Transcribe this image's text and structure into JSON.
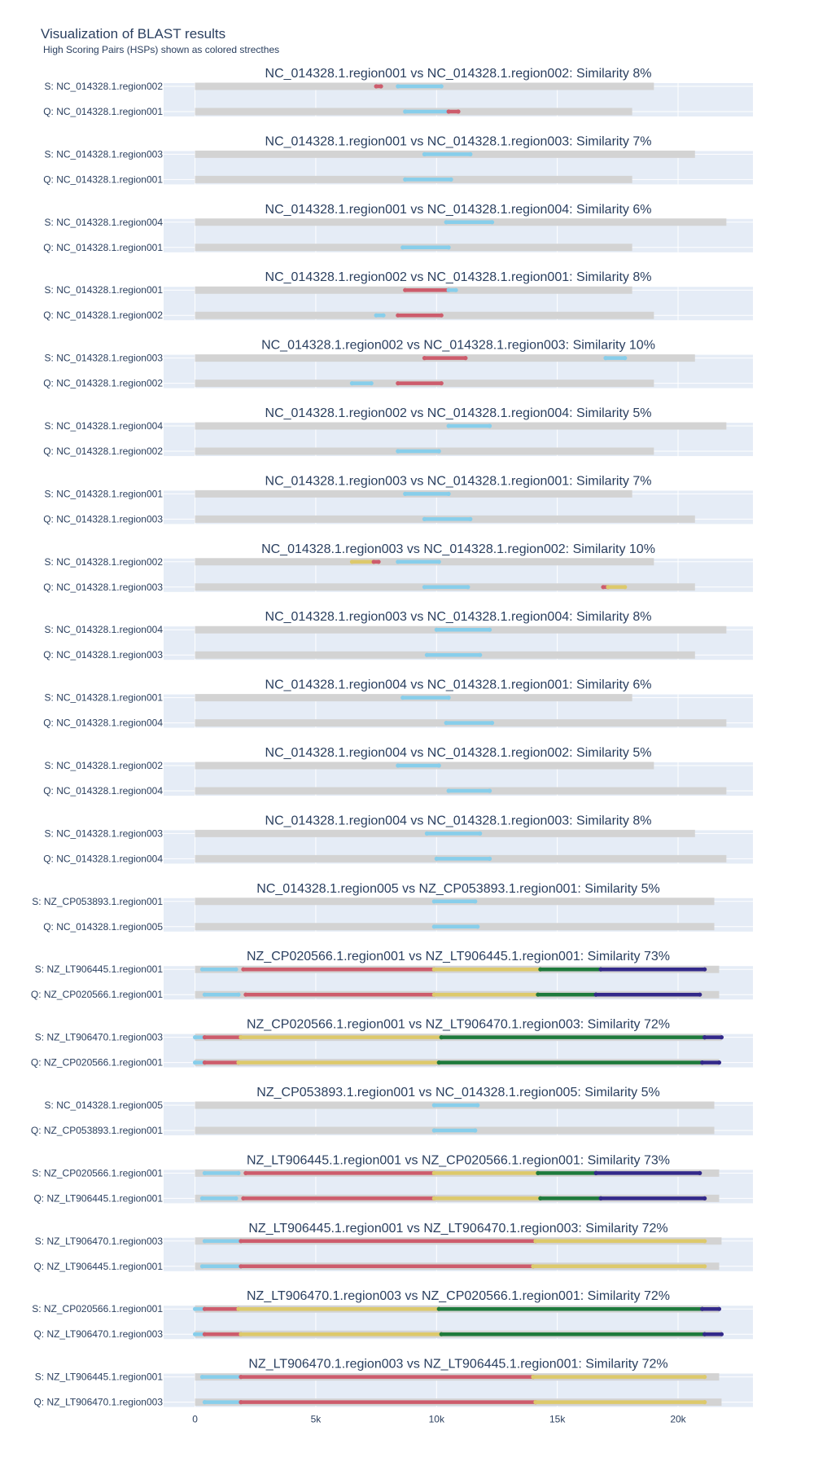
{
  "title": "Visualization of BLAST results",
  "subtitle": "High Scoring Pairs (HSPs) shown as colored strecthes",
  "colors": {
    "plot_bg": "#e5ecf6",
    "grid": "#ffffff",
    "track": "#d3d3d3",
    "blue": "#87ceeb",
    "red": "#cd5c6c",
    "yellow": "#ddc96b",
    "green": "#1e7a3c",
    "purple": "#33298a"
  },
  "chart_data": {
    "type": "bar",
    "xlim": [
      -1300,
      23100
    ],
    "xticks": [
      {
        "value": 0,
        "label": "0"
      },
      {
        "value": 5000,
        "label": "5k"
      },
      {
        "value": 10000,
        "label": "10k"
      },
      {
        "value": 15000,
        "label": "15k"
      },
      {
        "value": 20000,
        "label": "20k"
      }
    ],
    "panels": [
      {
        "title": "NC_014328.1.region001 vs NC_014328.1.region002: Similarity 8%",
        "subject": {
          "label": "S: NC_014328.1.region002",
          "length": 19000,
          "hsps": [
            {
              "start": 7500,
              "end": 7700,
              "color": "red"
            },
            {
              "start": 8400,
              "end": 10200,
              "color": "blue"
            }
          ]
        },
        "query": {
          "label": "Q: NC_014328.1.region001",
          "length": 18100,
          "hsps": [
            {
              "start": 8700,
              "end": 10500,
              "color": "blue"
            },
            {
              "start": 10500,
              "end": 10900,
              "color": "red"
            }
          ]
        }
      },
      {
        "title": "NC_014328.1.region001 vs NC_014328.1.region003: Similarity 7%",
        "subject": {
          "label": "S: NC_014328.1.region003",
          "length": 20700,
          "hsps": [
            {
              "start": 9500,
              "end": 11400,
              "color": "blue"
            }
          ]
        },
        "query": {
          "label": "Q: NC_014328.1.region001",
          "length": 18100,
          "hsps": [
            {
              "start": 8700,
              "end": 10600,
              "color": "blue"
            }
          ]
        }
      },
      {
        "title": "NC_014328.1.region001 vs NC_014328.1.region004: Similarity 6%",
        "subject": {
          "label": "S: NC_014328.1.region004",
          "length": 22000,
          "hsps": [
            {
              "start": 10400,
              "end": 12300,
              "color": "blue"
            }
          ]
        },
        "query": {
          "label": "Q: NC_014328.1.region001",
          "length": 18100,
          "hsps": [
            {
              "start": 8600,
              "end": 10500,
              "color": "blue"
            }
          ]
        }
      },
      {
        "title": "NC_014328.1.region002 vs NC_014328.1.region001: Similarity 8%",
        "subject": {
          "label": "S: NC_014328.1.region001",
          "length": 18100,
          "hsps": [
            {
              "start": 8700,
              "end": 10500,
              "color": "red"
            },
            {
              "start": 10500,
              "end": 10800,
              "color": "blue"
            }
          ]
        },
        "query": {
          "label": "Q: NC_014328.1.region002",
          "length": 19000,
          "hsps": [
            {
              "start": 7500,
              "end": 7800,
              "color": "blue"
            },
            {
              "start": 8400,
              "end": 10200,
              "color": "red"
            }
          ]
        }
      },
      {
        "title": "NC_014328.1.region002 vs NC_014328.1.region003: Similarity 10%",
        "subject": {
          "label": "S: NC_014328.1.region003",
          "length": 20700,
          "hsps": [
            {
              "start": 9500,
              "end": 11200,
              "color": "red"
            },
            {
              "start": 17000,
              "end": 17800,
              "color": "blue"
            }
          ]
        },
        "query": {
          "label": "Q: NC_014328.1.region002",
          "length": 19000,
          "hsps": [
            {
              "start": 6500,
              "end": 7300,
              "color": "blue"
            },
            {
              "start": 8400,
              "end": 10200,
              "color": "red"
            }
          ]
        }
      },
      {
        "title": "NC_014328.1.region002 vs NC_014328.1.region004: Similarity 5%",
        "subject": {
          "label": "S: NC_014328.1.region004",
          "length": 22000,
          "hsps": [
            {
              "start": 10500,
              "end": 12200,
              "color": "blue"
            }
          ]
        },
        "query": {
          "label": "Q: NC_014328.1.region002",
          "length": 19000,
          "hsps": [
            {
              "start": 8400,
              "end": 10100,
              "color": "blue"
            }
          ]
        }
      },
      {
        "title": "NC_014328.1.region003 vs NC_014328.1.region001: Similarity 7%",
        "subject": {
          "label": "S: NC_014328.1.region001",
          "length": 18100,
          "hsps": [
            {
              "start": 8700,
              "end": 10500,
              "color": "blue"
            }
          ]
        },
        "query": {
          "label": "Q: NC_014328.1.region003",
          "length": 20700,
          "hsps": [
            {
              "start": 9500,
              "end": 11400,
              "color": "blue"
            }
          ]
        }
      },
      {
        "title": "NC_014328.1.region003 vs NC_014328.1.region002: Similarity 10%",
        "subject": {
          "label": "S: NC_014328.1.region002",
          "length": 19000,
          "hsps": [
            {
              "start": 6500,
              "end": 7400,
              "color": "yellow"
            },
            {
              "start": 7400,
              "end": 7600,
              "color": "red"
            },
            {
              "start": 8400,
              "end": 10100,
              "color": "blue"
            }
          ]
        },
        "query": {
          "label": "Q: NC_014328.1.region003",
          "length": 20700,
          "hsps": [
            {
              "start": 9500,
              "end": 11300,
              "color": "blue"
            },
            {
              "start": 16900,
              "end": 17100,
              "color": "red"
            },
            {
              "start": 17100,
              "end": 17800,
              "color": "yellow"
            }
          ]
        }
      },
      {
        "title": "NC_014328.1.region003 vs NC_014328.1.region004: Similarity 8%",
        "subject": {
          "label": "S: NC_014328.1.region004",
          "length": 22000,
          "hsps": [
            {
              "start": 10000,
              "end": 12200,
              "color": "blue"
            }
          ]
        },
        "query": {
          "label": "Q: NC_014328.1.region003",
          "length": 20700,
          "hsps": [
            {
              "start": 9600,
              "end": 11800,
              "color": "blue"
            }
          ]
        }
      },
      {
        "title": "NC_014328.1.region004 vs NC_014328.1.region001: Similarity 6%",
        "subject": {
          "label": "S: NC_014328.1.region001",
          "length": 18100,
          "hsps": [
            {
              "start": 8600,
              "end": 10500,
              "color": "blue"
            }
          ]
        },
        "query": {
          "label": "Q: NC_014328.1.region004",
          "length": 22000,
          "hsps": [
            {
              "start": 10400,
              "end": 12300,
              "color": "blue"
            }
          ]
        }
      },
      {
        "title": "NC_014328.1.region004 vs NC_014328.1.region002: Similarity 5%",
        "subject": {
          "label": "S: NC_014328.1.region002",
          "length": 19000,
          "hsps": [
            {
              "start": 8400,
              "end": 10100,
              "color": "blue"
            }
          ]
        },
        "query": {
          "label": "Q: NC_014328.1.region004",
          "length": 22000,
          "hsps": [
            {
              "start": 10500,
              "end": 12200,
              "color": "blue"
            }
          ]
        }
      },
      {
        "title": "NC_014328.1.region004 vs NC_014328.1.region003: Similarity 8%",
        "subject": {
          "label": "S: NC_014328.1.region003",
          "length": 20700,
          "hsps": [
            {
              "start": 9600,
              "end": 11800,
              "color": "blue"
            }
          ]
        },
        "query": {
          "label": "Q: NC_014328.1.region004",
          "length": 22000,
          "hsps": [
            {
              "start": 10000,
              "end": 12200,
              "color": "blue"
            }
          ]
        }
      },
      {
        "title": "NC_014328.1.region005 vs NZ_CP053893.1.region001: Similarity 5%",
        "subject": {
          "label": "S: NZ_CP053893.1.region001",
          "length": 21500,
          "hsps": [
            {
              "start": 9900,
              "end": 11600,
              "color": "blue"
            }
          ]
        },
        "query": {
          "label": "Q: NC_014328.1.region005",
          "length": 21500,
          "hsps": [
            {
              "start": 9900,
              "end": 11700,
              "color": "blue"
            }
          ]
        }
      },
      {
        "title": "NZ_CP020566.1.region001 vs NZ_LT906445.1.region001: Similarity 73%",
        "subject": {
          "label": "S: NZ_LT906445.1.region001",
          "length": 21700,
          "hsps": [
            {
              "start": 300,
              "end": 1700,
              "color": "blue"
            },
            {
              "start": 2000,
              "end": 9900,
              "color": "red"
            },
            {
              "start": 9900,
              "end": 14300,
              "color": "yellow"
            },
            {
              "start": 14300,
              "end": 16800,
              "color": "green"
            },
            {
              "start": 16800,
              "end": 21100,
              "color": "purple"
            }
          ]
        },
        "query": {
          "label": "Q: NZ_CP020566.1.region001",
          "length": 21700,
          "hsps": [
            {
              "start": 400,
              "end": 1800,
              "color": "blue"
            },
            {
              "start": 2100,
              "end": 9900,
              "color": "red"
            },
            {
              "start": 9900,
              "end": 14200,
              "color": "yellow"
            },
            {
              "start": 14200,
              "end": 16600,
              "color": "green"
            },
            {
              "start": 16600,
              "end": 20900,
              "color": "purple"
            }
          ]
        }
      },
      {
        "title": "NZ_CP020566.1.region001 vs NZ_LT906470.1.region003: Similarity 72%",
        "subject": {
          "label": "S: NZ_LT906470.1.region003",
          "length": 21800,
          "hsps": [
            {
              "start": 0,
              "end": 400,
              "color": "blue"
            },
            {
              "start": 400,
              "end": 1900,
              "color": "red"
            },
            {
              "start": 1900,
              "end": 10200,
              "color": "yellow"
            },
            {
              "start": 10200,
              "end": 21100,
              "color": "green"
            },
            {
              "start": 21100,
              "end": 21800,
              "color": "purple"
            }
          ]
        },
        "query": {
          "label": "Q: NZ_CP020566.1.region001",
          "length": 21700,
          "hsps": [
            {
              "start": 0,
              "end": 400,
              "color": "blue"
            },
            {
              "start": 400,
              "end": 1800,
              "color": "red"
            },
            {
              "start": 1800,
              "end": 10100,
              "color": "yellow"
            },
            {
              "start": 10100,
              "end": 21000,
              "color": "green"
            },
            {
              "start": 21000,
              "end": 21700,
              "color": "purple"
            }
          ]
        }
      },
      {
        "title": "NZ_CP053893.1.region001 vs NC_014328.1.region005: Similarity 5%",
        "subject": {
          "label": "S: NC_014328.1.region005",
          "length": 21500,
          "hsps": [
            {
              "start": 9900,
              "end": 11700,
              "color": "blue"
            }
          ]
        },
        "query": {
          "label": "Q: NZ_CP053893.1.region001",
          "length": 21500,
          "hsps": [
            {
              "start": 9900,
              "end": 11600,
              "color": "blue"
            }
          ]
        }
      },
      {
        "title": "NZ_LT906445.1.region001 vs NZ_CP020566.1.region001: Similarity 73%",
        "subject": {
          "label": "S: NZ_CP020566.1.region001",
          "length": 21700,
          "hsps": [
            {
              "start": 400,
              "end": 1800,
              "color": "blue"
            },
            {
              "start": 2100,
              "end": 9900,
              "color": "red"
            },
            {
              "start": 9900,
              "end": 14200,
              "color": "yellow"
            },
            {
              "start": 14200,
              "end": 16600,
              "color": "green"
            },
            {
              "start": 16600,
              "end": 20900,
              "color": "purple"
            }
          ]
        },
        "query": {
          "label": "Q: NZ_LT906445.1.region001",
          "length": 21700,
          "hsps": [
            {
              "start": 300,
              "end": 1700,
              "color": "blue"
            },
            {
              "start": 2000,
              "end": 9900,
              "color": "red"
            },
            {
              "start": 9900,
              "end": 14300,
              "color": "yellow"
            },
            {
              "start": 14300,
              "end": 16800,
              "color": "green"
            },
            {
              "start": 16800,
              "end": 21100,
              "color": "purple"
            }
          ]
        }
      },
      {
        "title": "NZ_LT906445.1.region001 vs NZ_LT906470.1.region003: Similarity 72%",
        "subject": {
          "label": "S: NZ_LT906470.1.region003",
          "length": 21800,
          "hsps": [
            {
              "start": 400,
              "end": 1900,
              "color": "blue"
            },
            {
              "start": 1900,
              "end": 14100,
              "color": "red"
            },
            {
              "start": 14100,
              "end": 21100,
              "color": "yellow"
            }
          ]
        },
        "query": {
          "label": "Q: NZ_LT906445.1.region001",
          "length": 21700,
          "hsps": [
            {
              "start": 300,
              "end": 1900,
              "color": "blue"
            },
            {
              "start": 1900,
              "end": 14000,
              "color": "red"
            },
            {
              "start": 14000,
              "end": 21100,
              "color": "yellow"
            }
          ]
        }
      },
      {
        "title": "NZ_LT906470.1.region003 vs NZ_CP020566.1.region001: Similarity 72%",
        "subject": {
          "label": "S: NZ_CP020566.1.region001",
          "length": 21700,
          "hsps": [
            {
              "start": 0,
              "end": 400,
              "color": "blue"
            },
            {
              "start": 400,
              "end": 1800,
              "color": "red"
            },
            {
              "start": 1800,
              "end": 10100,
              "color": "yellow"
            },
            {
              "start": 10100,
              "end": 21000,
              "color": "green"
            },
            {
              "start": 21000,
              "end": 21700,
              "color": "purple"
            }
          ]
        },
        "query": {
          "label": "Q: NZ_LT906470.1.region003",
          "length": 21800,
          "hsps": [
            {
              "start": 0,
              "end": 400,
              "color": "blue"
            },
            {
              "start": 400,
              "end": 1900,
              "color": "red"
            },
            {
              "start": 1900,
              "end": 10200,
              "color": "yellow"
            },
            {
              "start": 10200,
              "end": 21100,
              "color": "green"
            },
            {
              "start": 21100,
              "end": 21800,
              "color": "purple"
            }
          ]
        }
      },
      {
        "title": "NZ_LT906470.1.region003 vs NZ_LT906445.1.region001: Similarity 72%",
        "subject": {
          "label": "S: NZ_LT906445.1.region001",
          "length": 21700,
          "hsps": [
            {
              "start": 300,
              "end": 1900,
              "color": "blue"
            },
            {
              "start": 1900,
              "end": 14000,
              "color": "red"
            },
            {
              "start": 14000,
              "end": 21100,
              "color": "yellow"
            }
          ]
        },
        "query": {
          "label": "Q: NZ_LT906470.1.region003",
          "length": 21800,
          "hsps": [
            {
              "start": 400,
              "end": 1900,
              "color": "blue"
            },
            {
              "start": 1900,
              "end": 14100,
              "color": "red"
            },
            {
              "start": 14100,
              "end": 21100,
              "color": "yellow"
            }
          ]
        }
      }
    ]
  }
}
